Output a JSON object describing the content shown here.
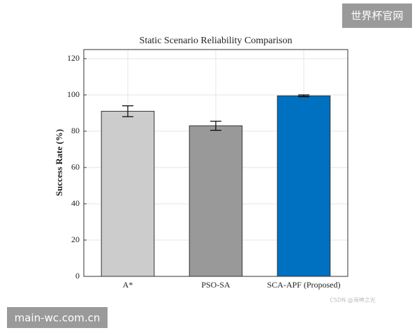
{
  "chart_data": {
    "type": "bar",
    "title": "Static Scenario Reliability Comparison",
    "y_label": "Success Rate (%)",
    "categories": [
      "A*",
      "PSO-SA",
      "SCA-APF (Proposed)"
    ],
    "values": [
      91,
      83,
      99.5
    ],
    "errors": [
      3,
      2.5,
      0.5
    ],
    "colors": [
      "#cccccc",
      "#999999",
      "#0070c0"
    ],
    "ylim": [
      0,
      125
    ],
    "yticks": [
      0,
      20,
      40,
      60,
      80,
      100,
      120
    ],
    "grid": true
  },
  "watermarks": [
    "世界杯官网",
    "main-wc.com.cn",
    "CSDN @海神之光"
  ]
}
